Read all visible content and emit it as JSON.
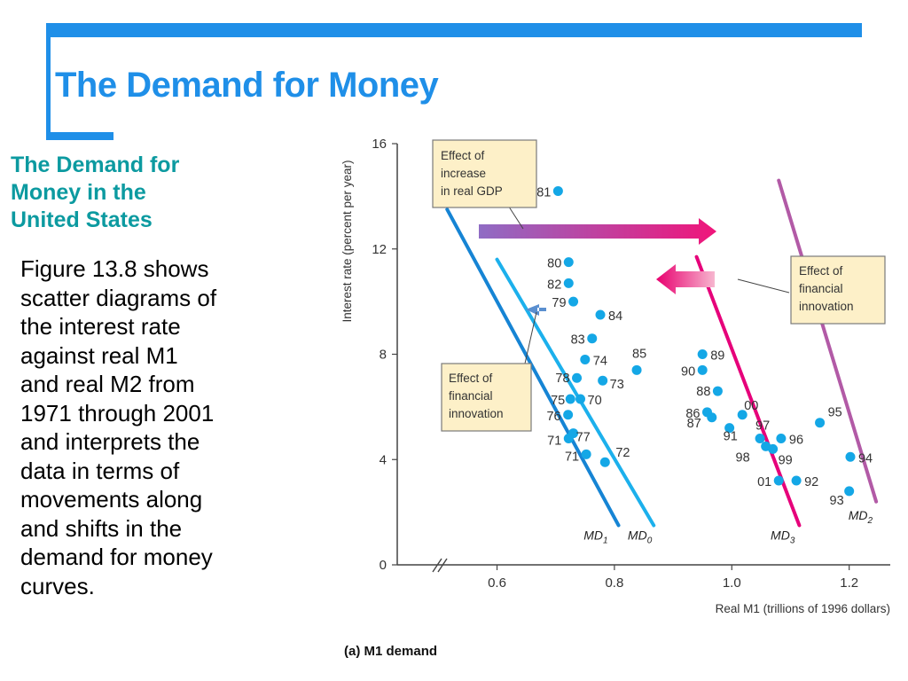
{
  "slide": {
    "title": "The Demand for Money",
    "subtitle_lines": [
      "The Demand for",
      "Money in the",
      "United States"
    ],
    "body_lines": [
      "Figure 13.8 shows",
      "scatter diagrams of",
      "the interest rate",
      "against real M1",
      "and real M2 from",
      "1971 through 2001",
      "and interprets the",
      "data in terms of",
      "movements along",
      "and shifts in the",
      "demand for money",
      "curves."
    ]
  },
  "colors": {
    "accent": "#1f8fe8",
    "subtitle": "#0c9aa0",
    "points": "#14a7e6",
    "md0": "#1cb0ec",
    "md1": "#1684d4",
    "md2": "#b25aa6",
    "md3": "#e6007a",
    "callout_bg": "#fdf0c8"
  },
  "chart_data": {
    "type": "scatter",
    "title": "(a) M1 demand",
    "xlabel": "Real M1 (trillions of 1996 dollars)",
    "ylabel": "Interest rate (percent per year)",
    "xlim": [
      0.43,
      1.27
    ],
    "ylim": [
      0,
      16
    ],
    "x_ticks": [
      {
        "v": 0.6,
        "label": "0.6"
      },
      {
        "v": 0.8,
        "label": "0.8"
      },
      {
        "v": 1.0,
        "label": "1.0"
      },
      {
        "v": 1.2,
        "label": "1.2"
      }
    ],
    "y_ticks": [
      {
        "v": 0,
        "label": "0"
      },
      {
        "v": 4,
        "label": "4"
      },
      {
        "v": 8,
        "label": "8"
      },
      {
        "v": 12,
        "label": "12"
      },
      {
        "v": 16,
        "label": "16"
      }
    ],
    "axis_break": true,
    "grid": false,
    "points": [
      {
        "label": "81",
        "x": 0.704,
        "y": 14.2
      },
      {
        "label": "80",
        "x": 0.722,
        "y": 11.5
      },
      {
        "label": "82",
        "x": 0.722,
        "y": 10.7
      },
      {
        "label": "79",
        "x": 0.73,
        "y": 10.0
      },
      {
        "label": "84",
        "x": 0.776,
        "y": 9.5
      },
      {
        "label": "83",
        "x": 0.762,
        "y": 8.6
      },
      {
        "label": "74",
        "x": 0.75,
        "y": 7.8
      },
      {
        "label": "85",
        "x": 0.838,
        "y": 7.4
      },
      {
        "label": "73",
        "x": 0.78,
        "y": 7.0
      },
      {
        "label": "78",
        "x": 0.736,
        "y": 7.1
      },
      {
        "label": "75",
        "x": 0.725,
        "y": 6.3
      },
      {
        "label": "70",
        "x": 0.742,
        "y": 6.3
      },
      {
        "label": "76",
        "x": 0.721,
        "y": 5.7
      },
      {
        "label": "77",
        "x": 0.73,
        "y": 5.0
      },
      {
        "label": "71",
        "x": 0.722,
        "y": 4.8
      },
      {
        "label": "71",
        "x": 0.752,
        "y": 4.2
      },
      {
        "label": "72",
        "x": 0.784,
        "y": 3.9
      },
      {
        "label": "89",
        "x": 0.95,
        "y": 8.0
      },
      {
        "label": "90",
        "x": 0.95,
        "y": 7.4
      },
      {
        "label": "88",
        "x": 0.976,
        "y": 6.6
      },
      {
        "label": "86",
        "x": 0.958,
        "y": 5.8
      },
      {
        "label": "87",
        "x": 0.966,
        "y": 5.6
      },
      {
        "label": "00",
        "x": 1.018,
        "y": 5.7
      },
      {
        "label": "91",
        "x": 0.996,
        "y": 5.2
      },
      {
        "label": "97",
        "x": 1.048,
        "y": 4.8
      },
      {
        "label": "96",
        "x": 1.084,
        "y": 4.8
      },
      {
        "label": "98",
        "x": 1.058,
        "y": 4.5
      },
      {
        "label": "99",
        "x": 1.07,
        "y": 4.4
      },
      {
        "label": "95",
        "x": 1.15,
        "y": 5.4
      },
      {
        "label": "94",
        "x": 1.202,
        "y": 4.1
      },
      {
        "label": "01",
        "x": 1.08,
        "y": 3.2
      },
      {
        "label": "92",
        "x": 1.11,
        "y": 3.2
      },
      {
        "label": "93",
        "x": 1.2,
        "y": 2.8
      }
    ],
    "series": [
      {
        "name": "MD1",
        "x1": 0.515,
        "y1": 13.5,
        "x2": 0.807,
        "y2": 1.5
      },
      {
        "name": "MD0",
        "x1": 0.6,
        "y1": 11.6,
        "x2": 0.867,
        "y2": 1.5
      },
      {
        "name": "MD3",
        "x1": 0.94,
        "y1": 11.7,
        "x2": 1.115,
        "y2": 1.5
      },
      {
        "name": "MD2",
        "x1": 1.08,
        "y1": 14.6,
        "x2": 1.246,
        "y2": 2.4
      }
    ],
    "annotations": [
      {
        "lines": [
          "Effect of",
          "increase",
          "in real GDP"
        ]
      },
      {
        "lines": [
          "Effect of",
          "financial",
          "innovation"
        ]
      },
      {
        "lines": [
          "Effect of",
          "financial",
          "innovation"
        ]
      }
    ]
  }
}
